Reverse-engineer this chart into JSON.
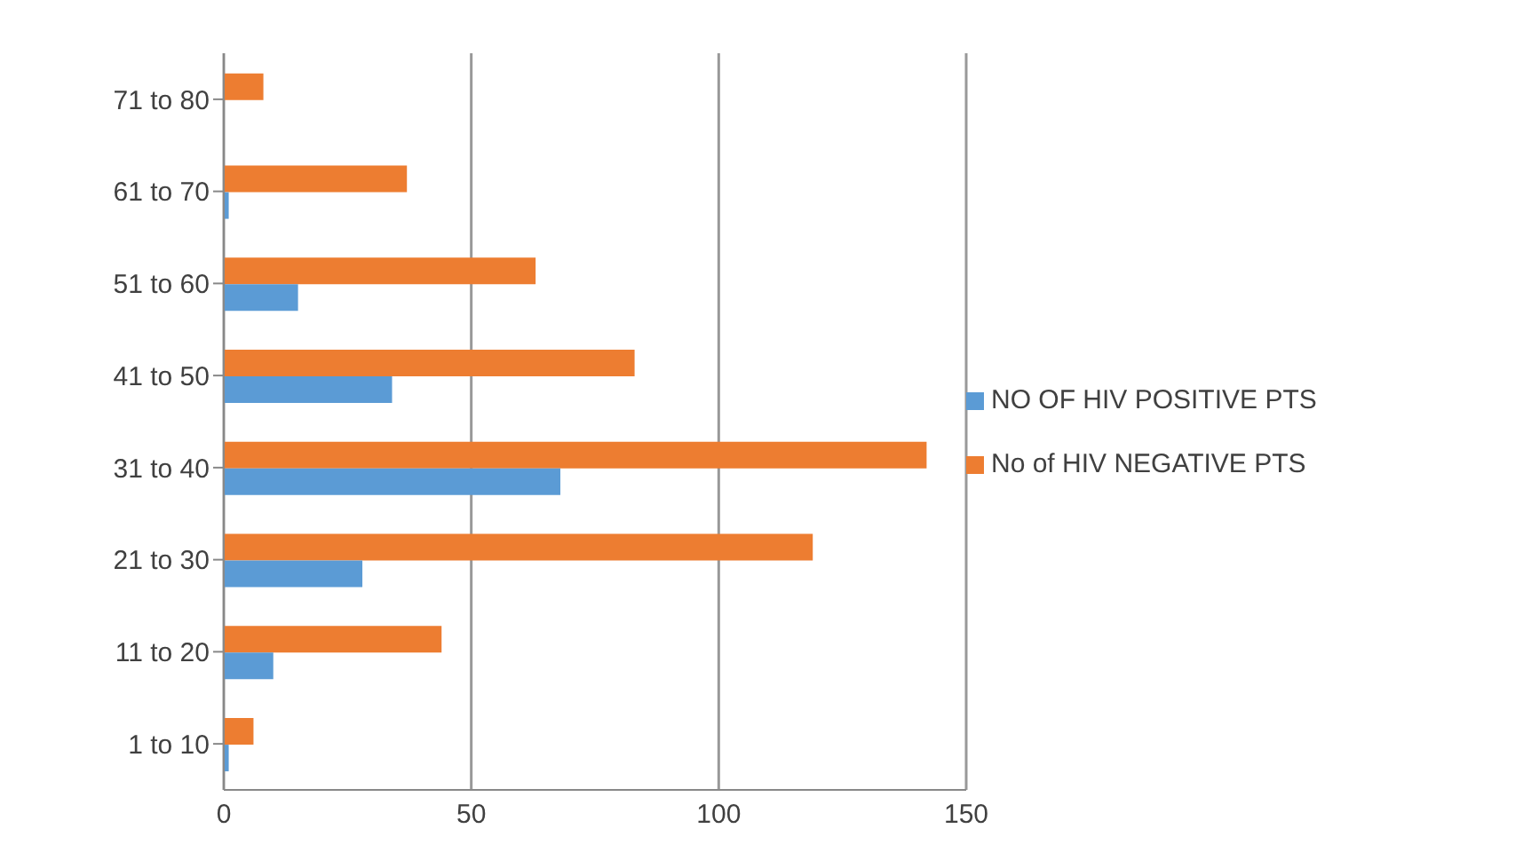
{
  "chart_data": {
    "type": "bar",
    "orientation": "horizontal",
    "categories": [
      "71 to 80",
      "61 to 70",
      "51 to 60",
      "41 to 50",
      "31 to 40",
      "21 to 30",
      "11 to 20",
      "1 to 10"
    ],
    "series": [
      {
        "name": "No of HIV NEGATIVE  PTS",
        "color": "#ed7d31",
        "values": [
          8,
          37,
          63,
          83,
          142,
          119,
          44,
          6
        ]
      },
      {
        "name": "NO OF HIV POSITIVE PTS",
        "color": "#5b9bd5",
        "values": [
          0,
          1,
          15,
          34,
          68,
          28,
          10,
          1
        ]
      }
    ],
    "xlim": [
      0,
      150
    ],
    "xticks": [
      0,
      50,
      100,
      150
    ],
    "grid": "x",
    "legend": "right"
  }
}
